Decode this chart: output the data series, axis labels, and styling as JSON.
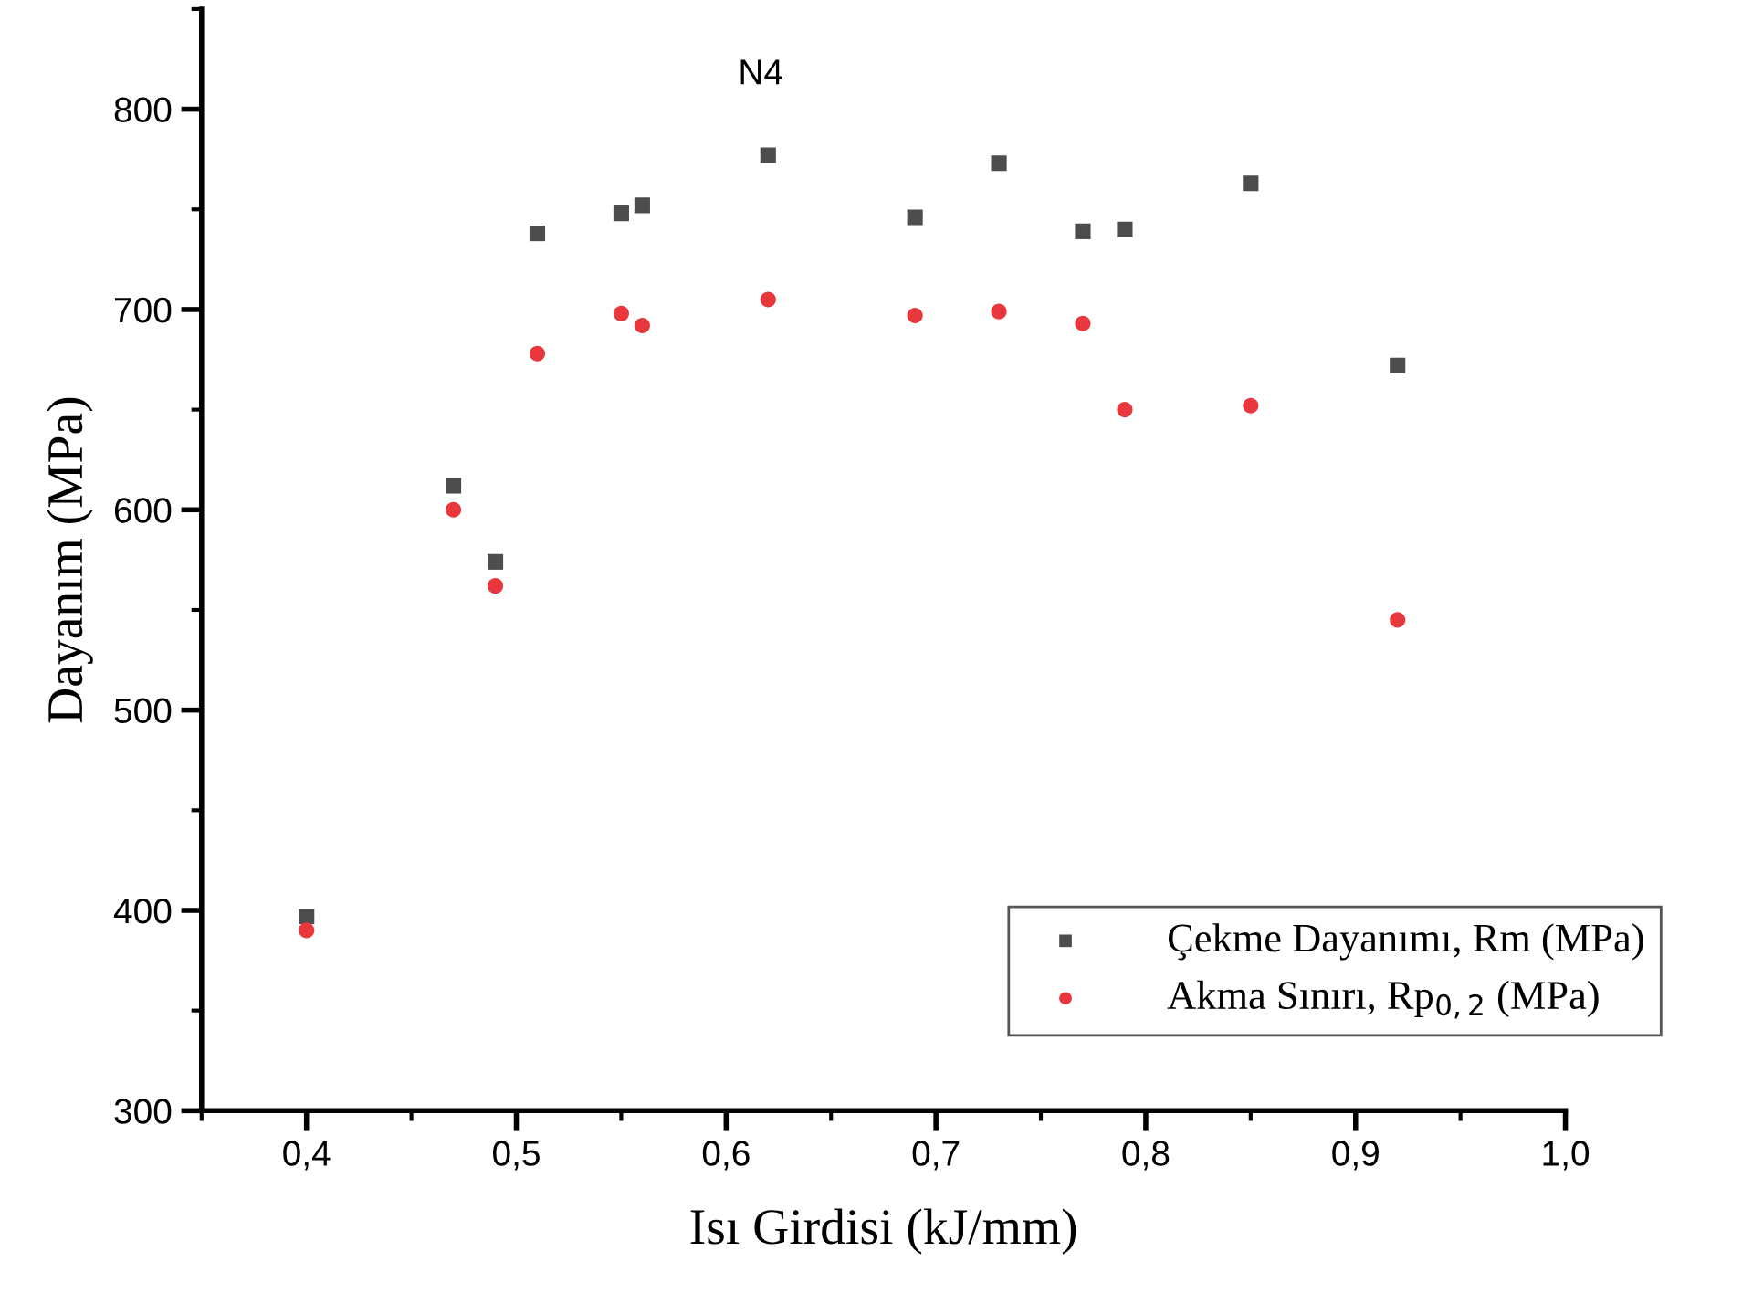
{
  "chart_data": {
    "type": "scatter",
    "xlabel": "Isı Girdisi (kJ/mm)",
    "ylabel": "Dayanım (MPa)",
    "x": [
      0.4,
      0.47,
      0.49,
      0.51,
      0.55,
      0.56,
      0.62,
      0.69,
      0.73,
      0.77,
      0.79,
      0.85,
      0.92
    ],
    "series": [
      {
        "name": "Çekme Dayanımı, Rm (MPa)",
        "color": "#4d4d4d",
        "marker": "square",
        "values": [
          397,
          612,
          574,
          738,
          748,
          752,
          777,
          746,
          773,
          739,
          740,
          763,
          672
        ]
      },
      {
        "name": "Akma Sınırı, Rp$_{0,2}$ (MPa)",
        "color": "#e8383d",
        "marker": "circle",
        "values": [
          390,
          600,
          562,
          678,
          698,
          692,
          705,
          697,
          699,
          693,
          650,
          652,
          545
        ]
      }
    ],
    "annotations": [
      "N4"
    ],
    "xlim": [
      0.35,
      1.0
    ],
    "xticks": [
      {
        "value": 0.4,
        "label": "0,4"
      },
      {
        "value": 0.5,
        "label": "0,5"
      },
      {
        "value": 0.6,
        "label": "0,6"
      },
      {
        "value": 0.7,
        "label": "0,7"
      },
      {
        "value": 0.8,
        "label": "0,8"
      },
      {
        "value": 0.9,
        "label": "0,9"
      },
      {
        "value": 1.0,
        "label": "1,0"
      }
    ],
    "ylim": [
      300,
      850
    ],
    "yticks": [
      300,
      400,
      500,
      600,
      700,
      800
    ],
    "grid": false,
    "legend": "bottom right"
  }
}
